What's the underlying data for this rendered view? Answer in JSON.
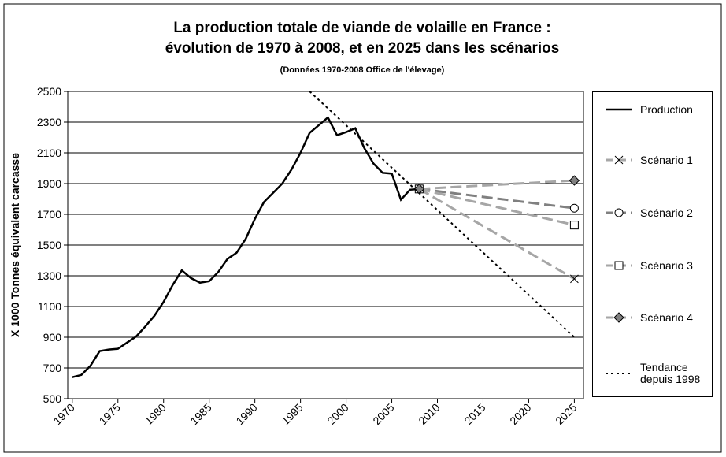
{
  "chart_data": {
    "type": "line",
    "title": "La production totale de viande de volaille en France :",
    "title_line2": "évolution de 1970 à 2008, et en 2025 dans les scénarios",
    "subtitle": "(Données 1970-2008 Office de l'élevage)",
    "y_label": "X 1000 Tonnes équivalent carcasse",
    "xlim": [
      1969.5,
      2026
    ],
    "xticks": [
      1970,
      1975,
      1980,
      1985,
      1990,
      1995,
      2000,
      2005,
      2010,
      2015,
      2020,
      2025
    ],
    "ylim": [
      500,
      2500
    ],
    "yticks": [
      500,
      700,
      900,
      1100,
      1300,
      1500,
      1700,
      1900,
      2100,
      2300,
      2500
    ],
    "grid": true,
    "legend": "right",
    "series": [
      {
        "name": "Production",
        "color": "#000000",
        "dash": "solid",
        "marker": "none",
        "x": [
          1970,
          1971,
          1972,
          1973,
          1974,
          1975,
          1976,
          1977,
          1978,
          1979,
          1980,
          1981,
          1982,
          1983,
          1984,
          1985,
          1986,
          1987,
          1988,
          1989,
          1990,
          1991,
          1992,
          1993,
          1994,
          1995,
          1996,
          1997,
          1998,
          1999,
          2000,
          2001,
          2002,
          2003,
          2004,
          2005,
          2006,
          2007,
          2008
        ],
        "values": [
          640,
          655,
          715,
          810,
          820,
          825,
          865,
          905,
          970,
          1040,
          1130,
          1240,
          1335,
          1285,
          1255,
          1265,
          1325,
          1410,
          1450,
          1540,
          1670,
          1780,
          1840,
          1900,
          1990,
          2100,
          2230,
          2280,
          2330,
          2215,
          2235,
          2260,
          2130,
          2030,
          1970,
          1965,
          1795,
          1860,
          1865
        ]
      },
      {
        "name": "Scénario 1",
        "color": "#a6a6a6",
        "dash": "dashed",
        "marker": "x",
        "x": [
          2008,
          2025
        ],
        "values": [
          1865,
          1280
        ]
      },
      {
        "name": "Scénario 2",
        "color": "#808080",
        "dash": "dashed",
        "marker": "circle",
        "x": [
          2008,
          2025
        ],
        "values": [
          1865,
          1740
        ]
      },
      {
        "name": "Scénario 3",
        "color": "#a6a6a6",
        "dash": "dashed",
        "marker": "square",
        "x": [
          2008,
          2025
        ],
        "values": [
          1865,
          1630
        ]
      },
      {
        "name": "Scénario 4",
        "color": "#a6a6a6",
        "dash": "dashed",
        "marker": "diamond",
        "x": [
          2008,
          2025
        ],
        "values": [
          1865,
          1920
        ]
      },
      {
        "name": "Tendance depuis 1998",
        "color": "#000000",
        "dash": "dotted",
        "marker": "none",
        "x": [
          1996,
          2025
        ],
        "values": [
          2500,
          900
        ]
      }
    ]
  }
}
